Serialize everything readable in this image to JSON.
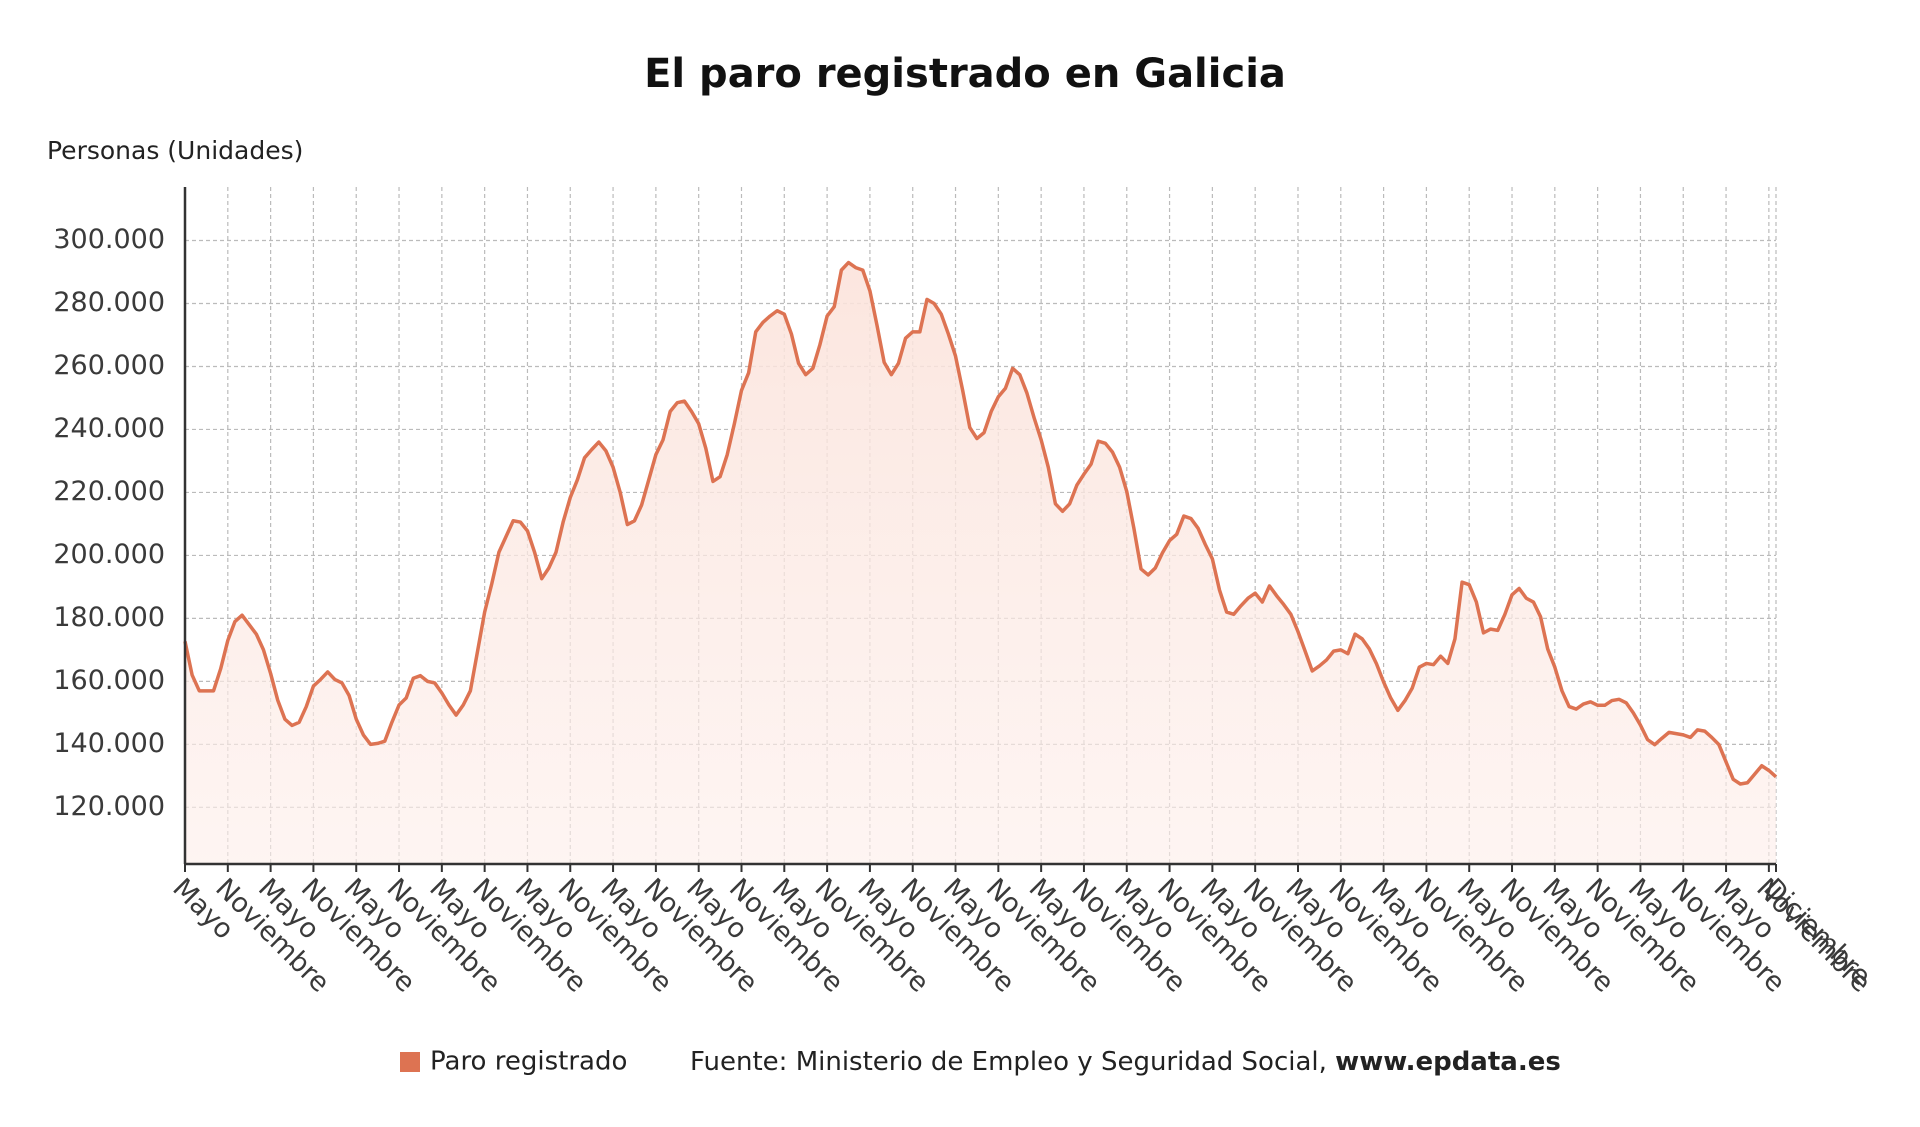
{
  "chart_data": {
    "type": "line",
    "title": "El paro registrado en Galicia",
    "y_axis_label": "Personas (Unidades)",
    "source": "Fuente: Ministerio de Empleo y Seguridad Social,",
    "source_link": "www.epdata.es",
    "categories": [
      "Mayo",
      null,
      null,
      null,
      null,
      null,
      "Noviembre",
      null,
      null,
      null,
      null,
      null,
      "Mayo",
      null,
      null,
      null,
      null,
      null,
      "Noviembre",
      null,
      null,
      null,
      null,
      null,
      "Mayo",
      null,
      null,
      null,
      null,
      null,
      "Noviembre",
      null,
      null,
      null,
      null,
      null,
      "Mayo",
      null,
      null,
      null,
      null,
      null,
      "Noviembre",
      null,
      null,
      null,
      null,
      null,
      "Mayo",
      null,
      null,
      null,
      null,
      null,
      "Noviembre",
      null,
      null,
      null,
      null,
      null,
      "Mayo",
      null,
      null,
      null,
      null,
      null,
      "Noviembre",
      null,
      null,
      null,
      null,
      null,
      "Mayo",
      null,
      null,
      null,
      null,
      null,
      "Noviembre",
      null,
      null,
      null,
      null,
      null,
      "Mayo",
      null,
      null,
      null,
      null,
      null,
      "Noviembre",
      null,
      null,
      null,
      null,
      null,
      "Mayo",
      null,
      null,
      null,
      null,
      null,
      "Noviembre",
      null,
      null,
      null,
      null,
      null,
      "Mayo",
      null,
      null,
      null,
      null,
      null,
      "Noviembre",
      null,
      null,
      null,
      null,
      null,
      "Mayo",
      null,
      null,
      null,
      null,
      null,
      "Noviembre",
      null,
      null,
      null,
      null,
      null,
      "Mayo",
      null,
      null,
      null,
      null,
      null,
      "Noviembre",
      null,
      null,
      null,
      null,
      null,
      "Mayo",
      null,
      null,
      null,
      null,
      null,
      "Noviembre",
      null,
      null,
      null,
      null,
      null,
      "Mayo",
      null,
      null,
      null,
      null,
      null,
      "Noviembre",
      null,
      null,
      null,
      null,
      null,
      "Mayo",
      null,
      null,
      null,
      null,
      null,
      "Noviembre",
      null,
      null,
      null,
      null,
      null,
      "Mayo",
      null,
      null,
      null,
      null,
      null,
      "Noviembre",
      null,
      null,
      null,
      null,
      null,
      "Mayo",
      null,
      null,
      null,
      null,
      null,
      "Noviembre",
      null,
      null,
      null,
      null,
      null,
      "Mayo",
      null,
      null,
      null,
      null,
      null,
      "Noviembre",
      null,
      null,
      null,
      null,
      null,
      "Mayo",
      null,
      null,
      null,
      null,
      null,
      "Noviembre",
      "Diciembre"
    ],
    "series": [
      {
        "name": "Paro registrado",
        "color": "#dd7352",
        "values": [
          172700,
          162000,
          157000,
          157000,
          157000,
          164000,
          173000,
          179000,
          181000,
          178000,
          175000,
          170000,
          162500,
          154000,
          148000,
          146000,
          147000,
          152000,
          158500,
          160600,
          163000,
          160600,
          159500,
          155500,
          148000,
          143000,
          140000,
          140300,
          141000,
          147000,
          152500,
          154700,
          161000,
          161800,
          160000,
          159500,
          156300,
          152500,
          149300,
          152500,
          157000,
          169500,
          182000,
          191000,
          201000,
          206000,
          211000,
          210600,
          207800,
          201000,
          192600,
          196000,
          201000,
          210600,
          218400,
          224000,
          231000,
          233600,
          236000,
          233200,
          228000,
          220000,
          209800,
          211000,
          216000,
          224000,
          232000,
          236700,
          245700,
          248500,
          249000,
          245700,
          241800,
          234000,
          223500,
          225000,
          232000,
          241800,
          252400,
          258000,
          271000,
          274000,
          276000,
          277700,
          276600,
          270300,
          261000,
          257400,
          259400,
          267000,
          276000,
          279000,
          290600,
          293000,
          291400,
          290600,
          284000,
          273000,
          261300,
          257400,
          261000,
          269000,
          271000,
          271000,
          281300,
          280000,
          276600,
          270300,
          263300,
          252400,
          240600,
          237100,
          239000,
          245700,
          250400,
          253100,
          259400,
          257400,
          251600,
          243800,
          236700,
          228000,
          216400,
          214000,
          216400,
          222300,
          225800,
          229000,
          236300,
          235600,
          232800,
          228000,
          220300,
          208600,
          195700,
          193800,
          196000,
          200800,
          204700,
          206700,
          212500,
          211700,
          208600,
          203500,
          198900,
          189000,
          182000,
          181300,
          184000,
          186400,
          188000,
          185200,
          190300,
          187200,
          184400,
          181300,
          175800,
          169600,
          163300,
          164900,
          166800,
          169600,
          170000,
          168800,
          175000,
          173500,
          170300,
          165600,
          159800,
          154700,
          150800,
          153900,
          157800,
          164500,
          165700,
          165300,
          168000,
          165700,
          173500,
          191500,
          190700,
          185200,
          175400,
          176600,
          176200,
          181300,
          187500,
          189500,
          186400,
          185200,
          180500,
          170300,
          164500,
          157000,
          152000,
          151200,
          152800,
          153500,
          152400,
          152400,
          153900,
          154300,
          153200,
          150000,
          146100,
          141500,
          139900,
          141900,
          143800,
          143400,
          143000,
          142200,
          144600,
          144200,
          142200,
          139900,
          134400,
          128900,
          127400,
          127800,
          130500,
          133200,
          131700,
          129700
        ]
      }
    ],
    "ylim": [
      102000,
      317000
    ],
    "yticks": [
      {
        "value": 120000,
        "label": "120.000"
      },
      {
        "value": 140000,
        "label": "140.000"
      },
      {
        "value": 160000,
        "label": "160.000"
      },
      {
        "value": 180000,
        "label": "180.000"
      },
      {
        "value": 200000,
        "label": "200.000"
      },
      {
        "value": 220000,
        "label": "220.000"
      },
      {
        "value": 240000,
        "label": "240.000"
      },
      {
        "value": 260000,
        "label": "260.000"
      },
      {
        "value": 280000,
        "label": "280.000"
      },
      {
        "value": 300000,
        "label": "300.000"
      }
    ],
    "grid": true,
    "area": true
  }
}
